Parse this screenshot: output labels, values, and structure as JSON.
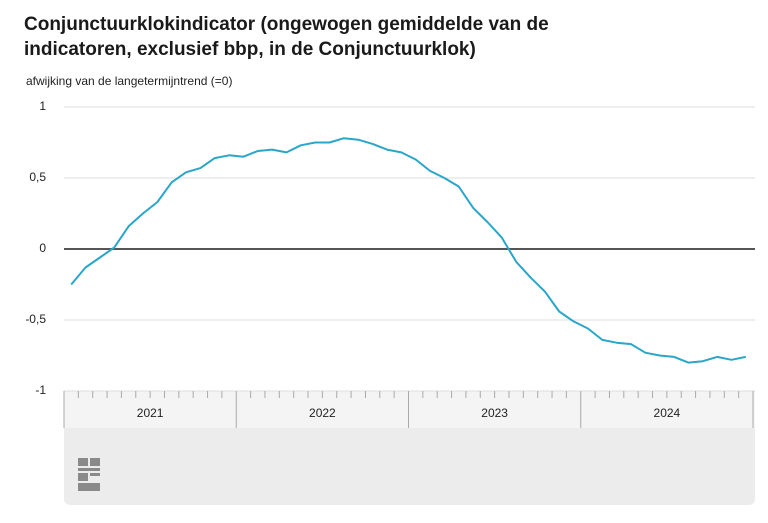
{
  "chart_data": {
    "type": "line",
    "title": "Conjunctuurklokindicator (ongewogen gemiddelde van de indicatoren, exclusief bbp, in de Conjunctuurklok)",
    "subtitle": "afwijking van de langetermijntrend (=0)",
    "categories": [
      null,
      null,
      null,
      null,
      null,
      null,
      null,
      null,
      null,
      null,
      null,
      null,
      null,
      null,
      null,
      null,
      null,
      null,
      null,
      null,
      null,
      null,
      null,
      null,
      null,
      null,
      null,
      null,
      null,
      null,
      null,
      null,
      null,
      null,
      null,
      null,
      null,
      null,
      null,
      null,
      null,
      null,
      null,
      null,
      null,
      null,
      null,
      null
    ],
    "x_groups": [
      "2021",
      "2022",
      "2023",
      "2024"
    ],
    "series": [
      {
        "color": "#2aa6c9",
        "values": [
          -0.25,
          -0.13,
          -0.06,
          0.01,
          0.16,
          0.25,
          0.33,
          0.47,
          0.54,
          0.57,
          0.64,
          0.66,
          0.65,
          0.69,
          0.7,
          0.68,
          0.73,
          0.75,
          0.75,
          0.78,
          0.77,
          0.74,
          0.7,
          0.68,
          0.63,
          0.55,
          0.5,
          0.44,
          0.29,
          0.19,
          0.08,
          -0.09,
          -0.2,
          -0.3,
          -0.44,
          -0.51,
          -0.56,
          -0.64,
          -0.66,
          -0.67,
          -0.73,
          -0.75,
          -0.76,
          -0.8,
          -0.79,
          -0.76,
          -0.78,
          -0.76
        ]
      }
    ],
    "ylim": [
      -1,
      1
    ],
    "yticks": [
      1,
      {
        "value": 0.5,
        "label": "0,5"
      },
      0,
      {
        "value": -0.5,
        "label": "-0,5"
      },
      -1
    ],
    "grid": true
  }
}
